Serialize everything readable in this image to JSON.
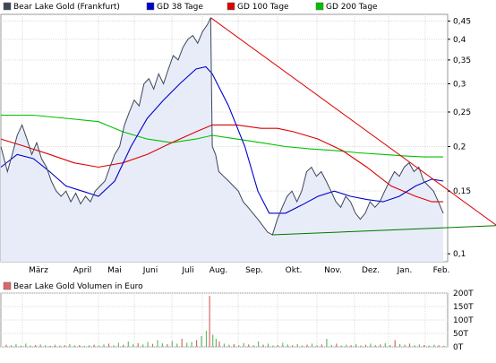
{
  "chart_data": [
    {
      "type": "line",
      "yscale": "log",
      "ylim": [
        0.095,
        0.47
      ],
      "legend_placement": "top",
      "grid": true,
      "x_tick_labels": [
        "März",
        "April",
        "Mai",
        "Juni",
        "Juli",
        "Aug.",
        "Sep.",
        "Okt.",
        "Nov.",
        "Dez.",
        "Jan.",
        "Feb."
      ],
      "y_ticks": [
        0.1,
        0.15,
        0.2,
        0.25,
        0.3,
        0.35,
        0.4,
        0.45
      ],
      "y_tick_labels": [
        "0,1",
        "0,15",
        "0,2",
        "0,25",
        "0,3",
        "0,35",
        "0,4",
        "0,45"
      ],
      "colors": {
        "price": "#3c4658",
        "price_fill": "#e8ecf8",
        "gd38": "#0000cc",
        "gd100": "#dd0000",
        "gd200": "#00c000",
        "trend_down": "#dd0000",
        "trend_up": "#007700"
      },
      "series": [
        {
          "name": "Bear Lake Gold (Frankfurt)",
          "key": "price",
          "points": [
            [
              0,
              0.2
            ],
            [
              4,
              0.17
            ],
            [
              7,
              0.19
            ],
            [
              10,
              0.215
            ],
            [
              13,
              0.23
            ],
            [
              16,
              0.21
            ],
            [
              19,
              0.19
            ],
            [
              22,
              0.205
            ],
            [
              25,
              0.185
            ],
            [
              28,
              0.175
            ],
            [
              31,
              0.16
            ],
            [
              34,
              0.15
            ],
            [
              37,
              0.145
            ],
            [
              40,
              0.15
            ],
            [
              43,
              0.14
            ],
            [
              46,
              0.148
            ],
            [
              49,
              0.138
            ],
            [
              52,
              0.145
            ],
            [
              55,
              0.14
            ],
            [
              58,
              0.15
            ],
            [
              61,
              0.155
            ],
            [
              64,
              0.16
            ],
            [
              67,
              0.175
            ],
            [
              70,
              0.19
            ],
            [
              73,
              0.2
            ],
            [
              76,
              0.23
            ],
            [
              79,
              0.25
            ],
            [
              82,
              0.27
            ],
            [
              85,
              0.26
            ],
            [
              88,
              0.3
            ],
            [
              91,
              0.31
            ],
            [
              94,
              0.29
            ],
            [
              97,
              0.32
            ],
            [
              100,
              0.3
            ],
            [
              103,
              0.33
            ],
            [
              106,
              0.36
            ],
            [
              109,
              0.35
            ],
            [
              112,
              0.38
            ],
            [
              115,
              0.4
            ],
            [
              118,
              0.41
            ],
            [
              121,
              0.39
            ],
            [
              124,
              0.42
            ],
            [
              127,
              0.44
            ],
            [
              129,
              0.46
            ],
            [
              130,
              0.2
            ],
            [
              132,
              0.19
            ],
            [
              134,
              0.17
            ],
            [
              137,
              0.165
            ],
            [
              140,
              0.16
            ],
            [
              143,
              0.155
            ],
            [
              146,
              0.15
            ],
            [
              149,
              0.14
            ],
            [
              152,
              0.135
            ],
            [
              155,
              0.13
            ],
            [
              158,
              0.125
            ],
            [
              161,
              0.12
            ],
            [
              164,
              0.115
            ],
            [
              167,
              0.113
            ],
            [
              170,
              0.125
            ],
            [
              173,
              0.135
            ],
            [
              176,
              0.145
            ],
            [
              179,
              0.15
            ],
            [
              182,
              0.14
            ],
            [
              185,
              0.15
            ],
            [
              188,
              0.17
            ],
            [
              191,
              0.175
            ],
            [
              194,
              0.165
            ],
            [
              197,
              0.17
            ],
            [
              200,
              0.16
            ],
            [
              203,
              0.15
            ],
            [
              206,
              0.14
            ],
            [
              209,
              0.135
            ],
            [
              212,
              0.145
            ],
            [
              215,
              0.14
            ],
            [
              218,
              0.13
            ],
            [
              221,
              0.125
            ],
            [
              224,
              0.13
            ],
            [
              227,
              0.14
            ],
            [
              230,
              0.135
            ],
            [
              233,
              0.14
            ],
            [
              236,
              0.15
            ],
            [
              239,
              0.16
            ],
            [
              242,
              0.17
            ],
            [
              245,
              0.165
            ],
            [
              248,
              0.175
            ],
            [
              251,
              0.18
            ],
            [
              254,
              0.17
            ],
            [
              257,
              0.175
            ],
            [
              260,
              0.16
            ],
            [
              263,
              0.155
            ],
            [
              266,
              0.15
            ],
            [
              269,
              0.14
            ],
            [
              272,
              0.13
            ]
          ]
        },
        {
          "name": "GD 38 Tage",
          "key": "gd38",
          "points": [
            [
              0,
              0.175
            ],
            [
              10,
              0.19
            ],
            [
              20,
              0.185
            ],
            [
              30,
              0.17
            ],
            [
              40,
              0.155
            ],
            [
              50,
              0.15
            ],
            [
              60,
              0.145
            ],
            [
              70,
              0.16
            ],
            [
              80,
              0.2
            ],
            [
              90,
              0.24
            ],
            [
              100,
              0.27
            ],
            [
              110,
              0.3
            ],
            [
              120,
              0.33
            ],
            [
              126,
              0.335
            ],
            [
              130,
              0.32
            ],
            [
              140,
              0.26
            ],
            [
              150,
              0.2
            ],
            [
              158,
              0.15
            ],
            [
              165,
              0.13
            ],
            [
              175,
              0.13
            ],
            [
              185,
              0.137
            ],
            [
              195,
              0.145
            ],
            [
              205,
              0.15
            ],
            [
              215,
              0.145
            ],
            [
              225,
              0.142
            ],
            [
              235,
              0.14
            ],
            [
              245,
              0.145
            ],
            [
              255,
              0.155
            ],
            [
              265,
              0.162
            ],
            [
              272,
              0.16
            ]
          ]
        },
        {
          "name": "GD 100 Tage",
          "key": "gd100",
          "points": [
            [
              0,
              0.21
            ],
            [
              15,
              0.2
            ],
            [
              30,
              0.19
            ],
            [
              45,
              0.18
            ],
            [
              60,
              0.175
            ],
            [
              75,
              0.18
            ],
            [
              90,
              0.19
            ],
            [
              105,
              0.205
            ],
            [
              120,
              0.22
            ],
            [
              130,
              0.23
            ],
            [
              145,
              0.23
            ],
            [
              160,
              0.225
            ],
            [
              170,
              0.225
            ],
            [
              180,
              0.22
            ],
            [
              195,
              0.21
            ],
            [
              210,
              0.195
            ],
            [
              225,
              0.175
            ],
            [
              240,
              0.155
            ],
            [
              255,
              0.145
            ],
            [
              265,
              0.14
            ],
            [
              272,
              0.14
            ]
          ]
        },
        {
          "name": "GD 200 Tage",
          "key": "gd200",
          "points": [
            [
              0,
              0.245
            ],
            [
              20,
              0.245
            ],
            [
              40,
              0.24
            ],
            [
              60,
              0.235
            ],
            [
              75,
              0.22
            ],
            [
              90,
              0.21
            ],
            [
              105,
              0.205
            ],
            [
              120,
              0.21
            ],
            [
              130,
              0.215
            ],
            [
              145,
              0.21
            ],
            [
              160,
              0.205
            ],
            [
              175,
              0.2
            ],
            [
              190,
              0.197
            ],
            [
              205,
              0.195
            ],
            [
              220,
              0.192
            ],
            [
              235,
              0.19
            ],
            [
              250,
              0.188
            ],
            [
              260,
              0.187
            ],
            [
              272,
              0.187
            ]
          ]
        }
      ],
      "trendlines": [
        {
          "key": "trend_down",
          "points": [
            [
              129,
              0.46
            ],
            [
              305,
              0.12
            ]
          ]
        },
        {
          "key": "trend_up",
          "points": [
            [
              167,
              0.113
            ],
            [
              305,
              0.12
            ]
          ]
        }
      ]
    },
    {
      "type": "bar",
      "legend_placement": "top",
      "grid": true,
      "y_ticks": [
        0,
        50,
        100,
        150,
        200
      ],
      "y_tick_labels": [
        "0T",
        "50T",
        "100T",
        "150T",
        "200T"
      ],
      "ylim": [
        0,
        200
      ],
      "colors": {
        "bar": "#66bb66",
        "bar_alt": "#dd6666"
      },
      "series": [
        {
          "name": "Bear Lake Gold Volumen in Euro",
          "key": "volume",
          "bars": [
            [
              3,
              8
            ],
            [
              6,
              6
            ],
            [
              9,
              10
            ],
            [
              12,
              4
            ],
            [
              15,
              12
            ],
            [
              18,
              5
            ],
            [
              21,
              7
            ],
            [
              24,
              9
            ],
            [
              27,
              6
            ],
            [
              30,
              4
            ],
            [
              33,
              8
            ],
            [
              36,
              5
            ],
            [
              39,
              6
            ],
            [
              42,
              10
            ],
            [
              45,
              5
            ],
            [
              48,
              7
            ],
            [
              51,
              4
            ],
            [
              54,
              6
            ],
            [
              57,
              8
            ],
            [
              60,
              5
            ],
            [
              63,
              9
            ],
            [
              66,
              12
            ],
            [
              69,
              6
            ],
            [
              72,
              15
            ],
            [
              75,
              8
            ],
            [
              78,
              20
            ],
            [
              81,
              10
            ],
            [
              84,
              14
            ],
            [
              87,
              9
            ],
            [
              90,
              18
            ],
            [
              93,
              11
            ],
            [
              96,
              25
            ],
            [
              99,
              13
            ],
            [
              102,
              10
            ],
            [
              105,
              22
            ],
            [
              108,
              12
            ],
            [
              111,
              30
            ],
            [
              114,
              15
            ],
            [
              117,
              18
            ],
            [
              120,
              25
            ],
            [
              123,
              40
            ],
            [
              126,
              60
            ],
            [
              128,
              190
            ],
            [
              130,
              45
            ],
            [
              132,
              30
            ],
            [
              134,
              20
            ],
            [
              137,
              12
            ],
            [
              140,
              8
            ],
            [
              143,
              10
            ],
            [
              146,
              6
            ],
            [
              149,
              14
            ],
            [
              152,
              9
            ],
            [
              155,
              6
            ],
            [
              158,
              20
            ],
            [
              161,
              8
            ],
            [
              164,
              12
            ],
            [
              167,
              5
            ],
            [
              170,
              7
            ],
            [
              173,
              15
            ],
            [
              176,
              9
            ],
            [
              179,
              6
            ],
            [
              182,
              10
            ],
            [
              185,
              5
            ],
            [
              188,
              8
            ],
            [
              191,
              12
            ],
            [
              194,
              6
            ],
            [
              197,
              9
            ],
            [
              200,
              30
            ],
            [
              203,
              7
            ],
            [
              206,
              12
            ],
            [
              209,
              5
            ],
            [
              212,
              8
            ],
            [
              215,
              6
            ],
            [
              218,
              10
            ],
            [
              221,
              5
            ],
            [
              224,
              8
            ],
            [
              227,
              12
            ],
            [
              230,
              6
            ],
            [
              233,
              9
            ],
            [
              236,
              14
            ],
            [
              239,
              7
            ],
            [
              242,
              25
            ],
            [
              245,
              10
            ],
            [
              248,
              8
            ],
            [
              251,
              12
            ],
            [
              254,
              6
            ],
            [
              257,
              9
            ],
            [
              260,
              7
            ],
            [
              263,
              5
            ],
            [
              266,
              8
            ],
            [
              269,
              6
            ],
            [
              272,
              4
            ]
          ]
        }
      ]
    }
  ]
}
